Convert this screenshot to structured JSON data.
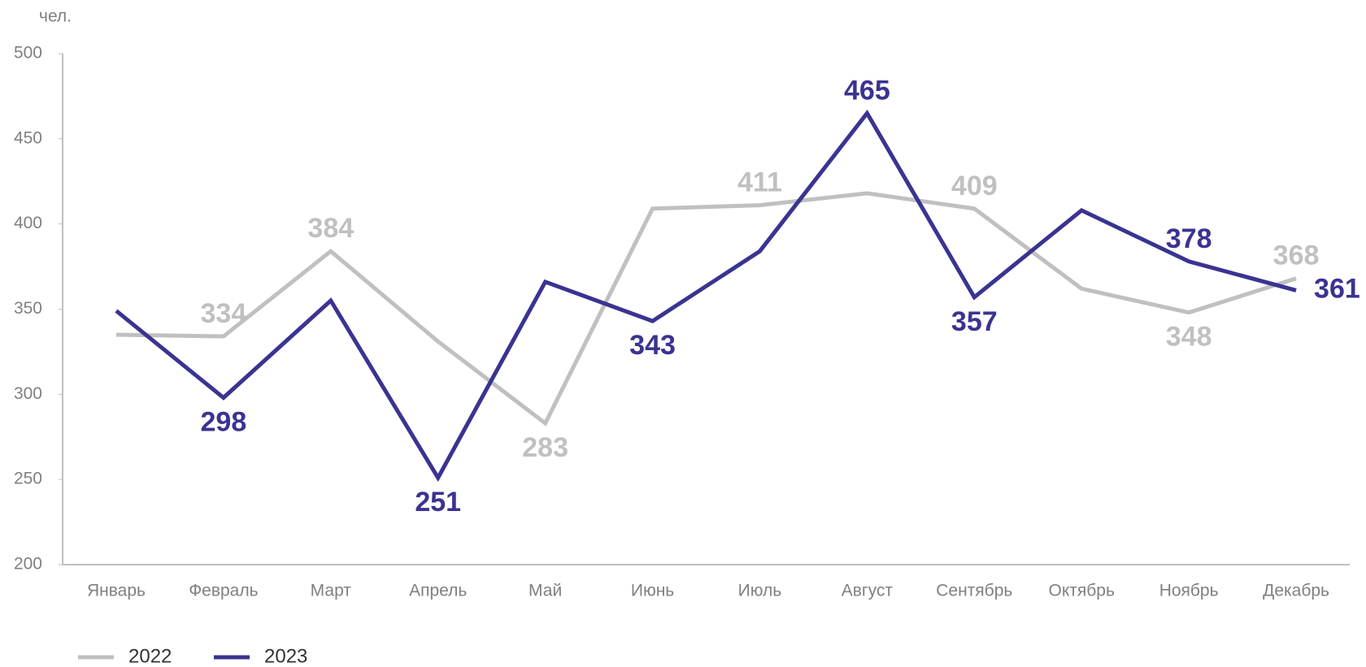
{
  "chart_data": {
    "type": "line",
    "unit_label": "чел.",
    "categories": [
      "Январь",
      "Февраль",
      "Март",
      "Апрель",
      "Май",
      "Июнь",
      "Июль",
      "Август",
      "Сентябрь",
      "Октябрь",
      "Ноябрь",
      "Декабрь"
    ],
    "series": [
      {
        "name": "2022",
        "color": "#c0c0c0",
        "values": [
          335,
          334,
          384,
          331,
          283,
          409,
          411,
          418,
          409,
          362,
          348,
          368
        ],
        "value_labels": [
          null,
          "334",
          "384",
          null,
          "283",
          null,
          "411",
          null,
          "409",
          null,
          "348",
          "368"
        ]
      },
      {
        "name": "2023",
        "color": "#3a3391",
        "values": [
          349,
          298,
          355,
          251,
          366,
          343,
          384,
          465,
          357,
          408,
          378,
          361
        ],
        "value_labels": [
          null,
          "298",
          null,
          "251",
          null,
          "343",
          null,
          "465",
          "357",
          null,
          "378",
          "361"
        ]
      }
    ],
    "ylim": [
      200,
      500
    ],
    "yticks": [
      200,
      250,
      300,
      350,
      400,
      450,
      500
    ],
    "grid": false
  }
}
